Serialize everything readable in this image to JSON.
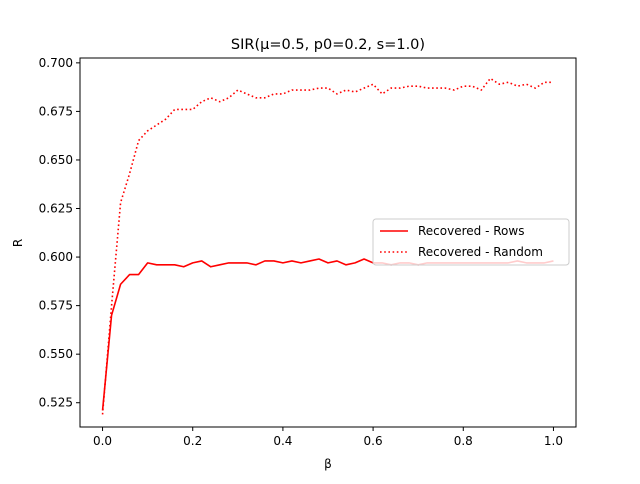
{
  "chart_data": {
    "type": "line",
    "title": "SIR(μ=0.5, p0=0.2, s=1.0)",
    "xlabel": "β",
    "ylabel": "R",
    "xlim": [
      -0.05,
      1.05
    ],
    "ylim": [
      0.5125,
      0.7025
    ],
    "xticks": [
      0.0,
      0.2,
      0.4,
      0.6,
      0.8,
      1.0
    ],
    "xtick_labels": [
      "0.0",
      "0.2",
      "0.4",
      "0.6",
      "0.8",
      "1.0"
    ],
    "yticks": [
      0.525,
      0.55,
      0.575,
      0.6,
      0.625,
      0.65,
      0.675,
      0.7
    ],
    "ytick_labels": [
      "0.525",
      "0.550",
      "0.575",
      "0.600",
      "0.625",
      "0.650",
      "0.675",
      "0.700"
    ],
    "grid": false,
    "legend_position": "center-right",
    "x": [
      0.0,
      0.02,
      0.04,
      0.06,
      0.08,
      0.1,
      0.12,
      0.14,
      0.16,
      0.18,
      0.2,
      0.22,
      0.24,
      0.26,
      0.28,
      0.3,
      0.32,
      0.34,
      0.36,
      0.38,
      0.4,
      0.42,
      0.44,
      0.46,
      0.48,
      0.5,
      0.52,
      0.54,
      0.56,
      0.58,
      0.6,
      0.62,
      0.64,
      0.66,
      0.68,
      0.7,
      0.72,
      0.74,
      0.76,
      0.78,
      0.8,
      0.82,
      0.84,
      0.86,
      0.88,
      0.9,
      0.92,
      0.94,
      0.96,
      0.98,
      1.0
    ],
    "series": [
      {
        "name": "Recovered - Rows",
        "style": "solid",
        "color": "#ff0000",
        "values": [
          0.521,
          0.57,
          0.586,
          0.591,
          0.591,
          0.597,
          0.596,
          0.596,
          0.596,
          0.595,
          0.597,
          0.598,
          0.595,
          0.596,
          0.597,
          0.597,
          0.597,
          0.596,
          0.598,
          0.598,
          0.597,
          0.598,
          0.597,
          0.598,
          0.599,
          0.597,
          0.598,
          0.596,
          0.597,
          0.599,
          0.597,
          0.597,
          0.596,
          0.597,
          0.597,
          0.596,
          0.597,
          0.597,
          0.597,
          0.597,
          0.597,
          0.597,
          0.597,
          0.597,
          0.597,
          0.597,
          0.598,
          0.597,
          0.597,
          0.597,
          0.598
        ]
      },
      {
        "name": "Recovered - Random",
        "style": "dotted",
        "color": "#ff0000",
        "values": [
          0.519,
          0.575,
          0.628,
          0.643,
          0.66,
          0.665,
          0.668,
          0.671,
          0.676,
          0.676,
          0.676,
          0.68,
          0.682,
          0.68,
          0.682,
          0.686,
          0.684,
          0.682,
          0.682,
          0.684,
          0.684,
          0.686,
          0.686,
          0.686,
          0.687,
          0.687,
          0.684,
          0.686,
          0.685,
          0.687,
          0.689,
          0.684,
          0.687,
          0.687,
          0.688,
          0.688,
          0.687,
          0.687,
          0.687,
          0.686,
          0.688,
          0.688,
          0.686,
          0.692,
          0.689,
          0.69,
          0.688,
          0.689,
          0.687,
          0.69,
          0.69
        ]
      }
    ]
  }
}
